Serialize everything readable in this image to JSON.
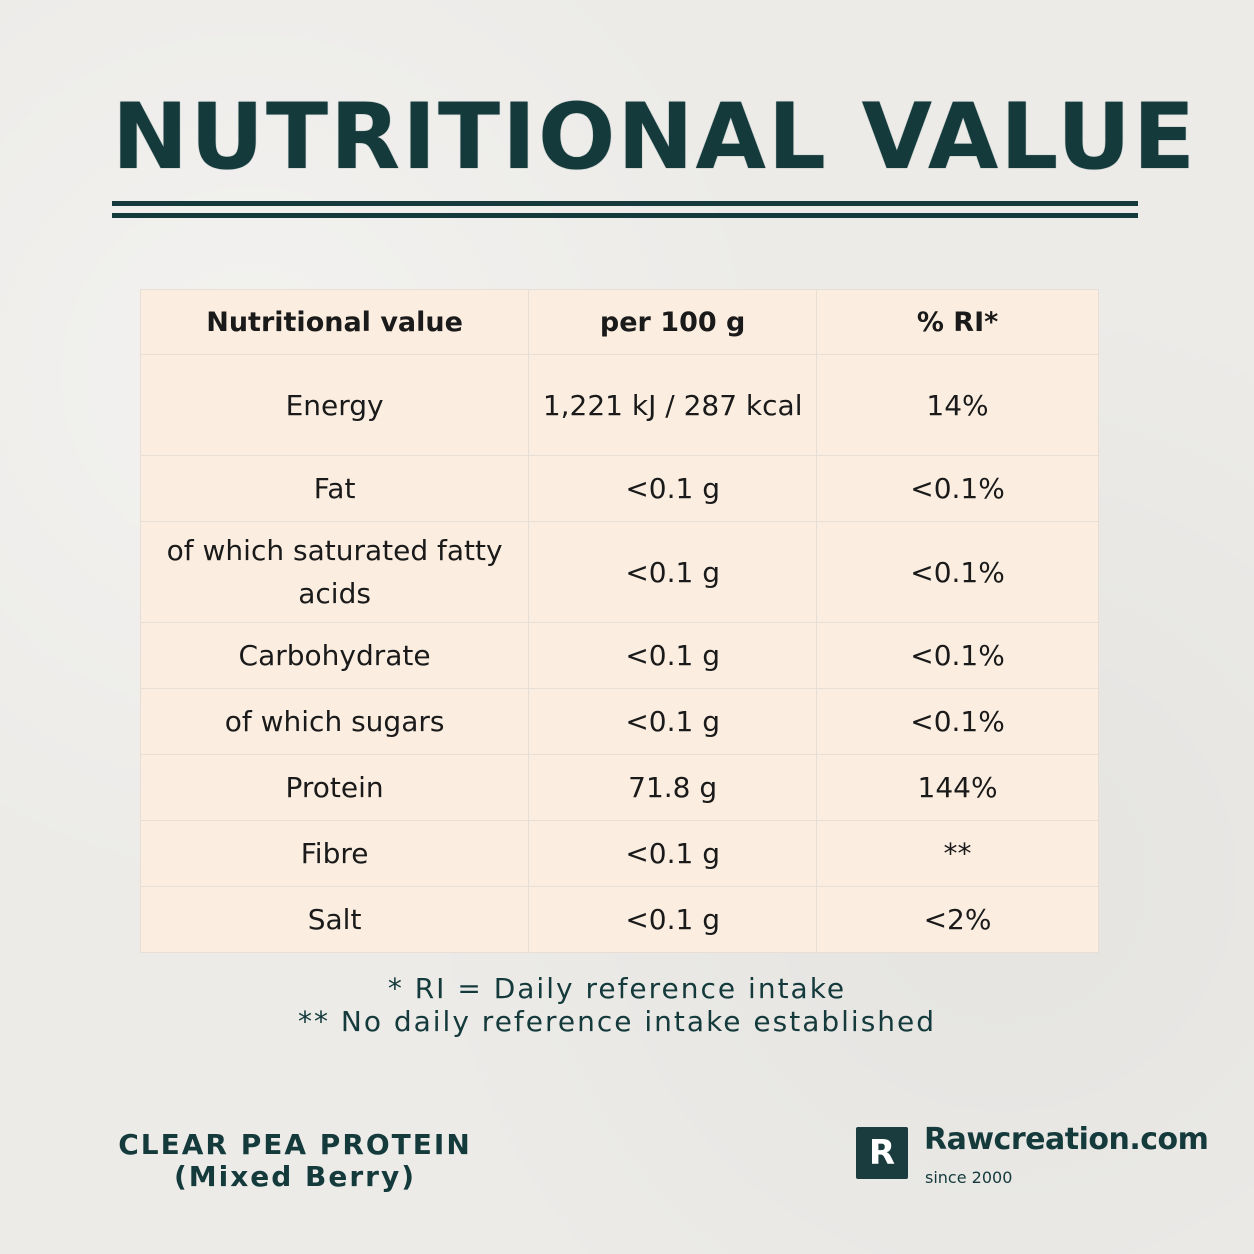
{
  "title": "NUTRITIONAL VALUE",
  "table": {
    "headers": [
      "Nutritional value",
      "per 100 g",
      "% RI*"
    ],
    "rows": [
      {
        "nutrient": "Energy",
        "per100g": "1,221 kJ / 287 kcal",
        "ri": "14%"
      },
      {
        "nutrient": "Fat",
        "per100g": "<0.1 g",
        "ri": "<0.1%"
      },
      {
        "nutrient": "of which saturated fatty acids",
        "per100g": "<0.1 g",
        "ri": "<0.1%"
      },
      {
        "nutrient": "Carbohydrate",
        "per100g": "<0.1 g",
        "ri": "<0.1%"
      },
      {
        "nutrient": "of which sugars",
        "per100g": "<0.1 g",
        "ri": "<0.1%"
      },
      {
        "nutrient": "Protein",
        "per100g": "71.8 g",
        "ri": "144%"
      },
      {
        "nutrient": "Fibre",
        "per100g": "<0.1 g",
        "ri": "**"
      },
      {
        "nutrient": "Salt",
        "per100g": "<0.1 g",
        "ri": "<2%"
      }
    ]
  },
  "footnotes": [
    "* RI = Daily reference intake",
    "** No daily reference intake established"
  ],
  "product": {
    "name": "CLEAR PEA PROTEIN",
    "flavor": "(Mixed Berry)"
  },
  "brand": {
    "logo_letter": "R",
    "name": "Rawcreation.com",
    "tagline": "since 2000",
    "color": "#143a3c"
  },
  "colors": {
    "background": "#ecebe8",
    "table_background": "#fbeee1",
    "accent": "#143a3c"
  }
}
